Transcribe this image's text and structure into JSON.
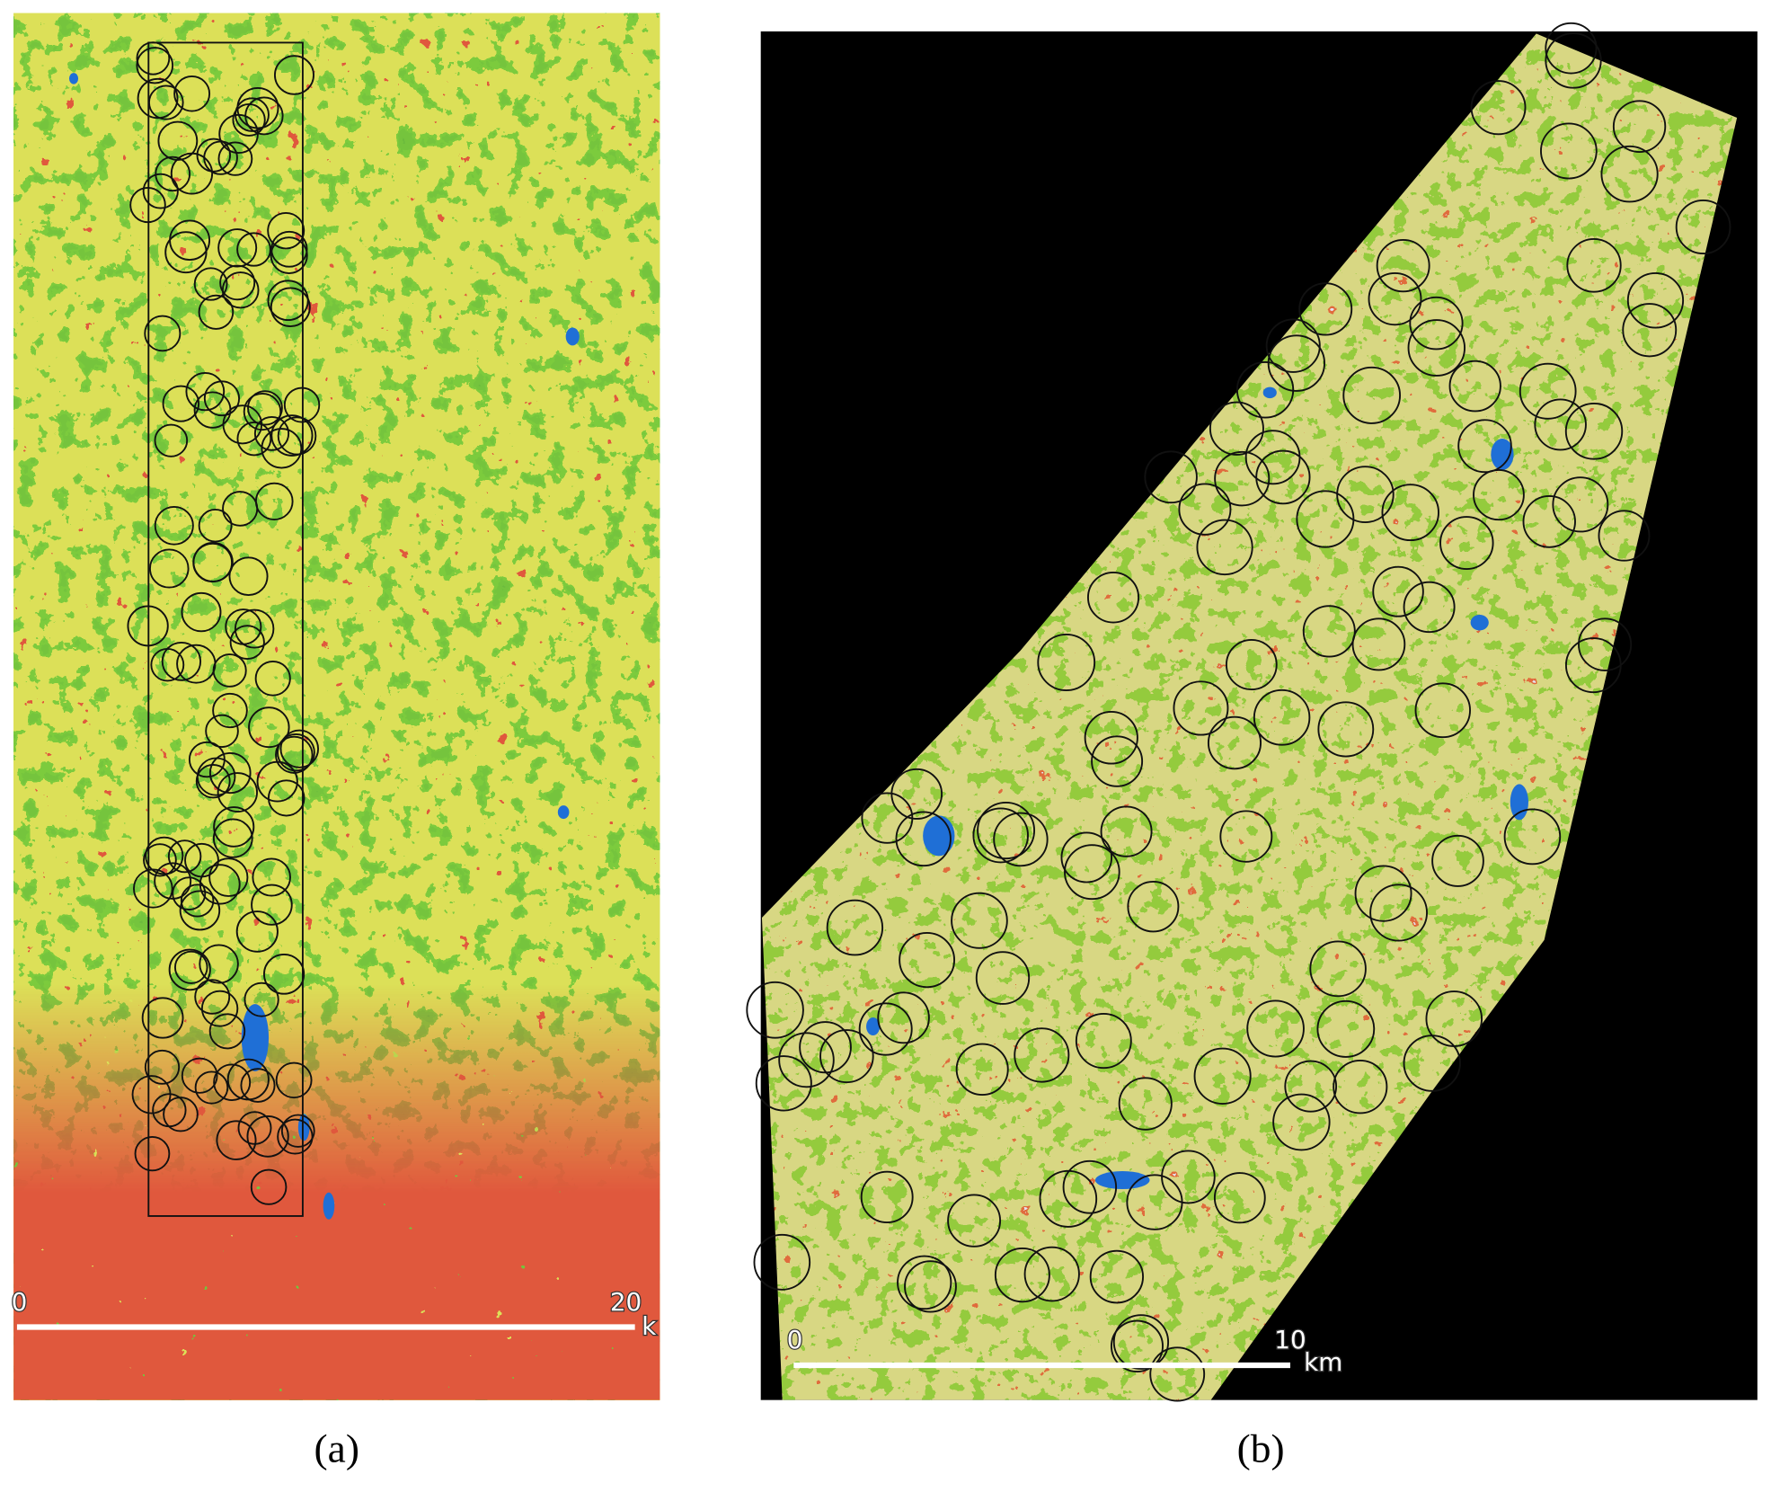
{
  "panels": [
    {
      "caption": "(a)",
      "scale_bar": {
        "start": "0",
        "end": "20",
        "unit": "k"
      }
    },
    {
      "caption": "(b)",
      "scale_bar": {
        "start": "0",
        "end": "10",
        "unit": "km"
      }
    }
  ]
}
